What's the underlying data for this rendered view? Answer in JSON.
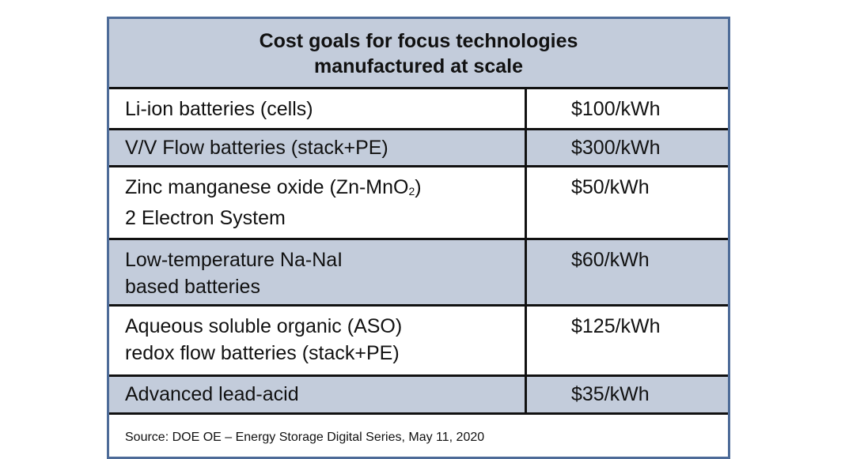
{
  "table": {
    "title_line1": "Cost goals for focus technologies",
    "title_line2": "manufactured at scale",
    "rows": [
      {
        "technology": "Li-ion batteries (cells)",
        "cost": "$100/kWh"
      },
      {
        "technology": "V/V Flow batteries (stack+PE)",
        "cost": "$300/kWh"
      },
      {
        "technology_line1_prefix": "Zinc manganese oxide (Zn-MnO",
        "technology_line1_sub": "2",
        "technology_line1_suffix": ")",
        "technology_line2": "2 Electron System",
        "cost": "$50/kWh"
      },
      {
        "technology_line1": "Low-temperature Na-NaI",
        "technology_line2": "based batteries",
        "cost": "$60/kWh"
      },
      {
        "technology_line1": "Aqueous soluble organic (ASO)",
        "technology_line2": "redox flow batteries (stack+PE)",
        "cost": "$125/kWh"
      },
      {
        "technology": "Advanced lead-acid",
        "cost": "$35/kWh"
      }
    ],
    "source": "Source: DOE OE – Energy Storage Digital Series, May 11, 2020"
  },
  "colors": {
    "header_bg": "#c3ccdb",
    "frame": "#4d6b98",
    "rule": "#111111"
  }
}
